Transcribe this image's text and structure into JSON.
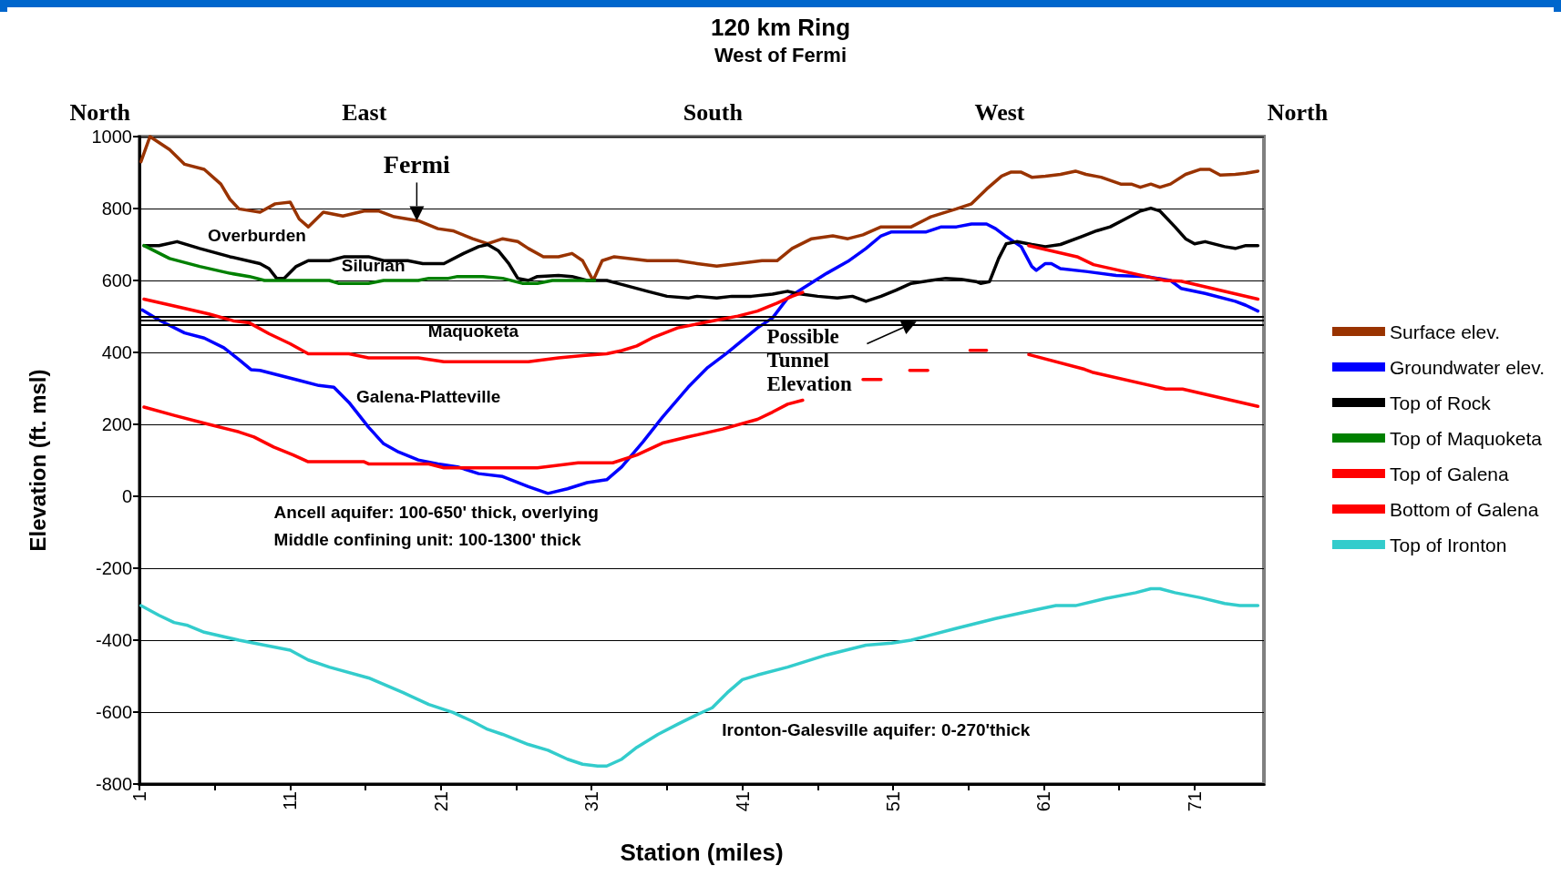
{
  "chart_data": {
    "type": "line",
    "title": "120 km Ring",
    "subtitle": "West of Fermi",
    "xlabel": "Station (miles)",
    "ylabel": "Elevation (ft. msl)",
    "xlim": [
      1,
      75.6
    ],
    "xticks": [
      1,
      {
        "value": 6,
        "label": null
      },
      11,
      {
        "value": 16,
        "label": null
      },
      21,
      {
        "value": 26,
        "label": null
      },
      31,
      {
        "value": 36,
        "label": null
      },
      41,
      {
        "value": 46,
        "label": null
      },
      51,
      {
        "value": 56,
        "label": null
      },
      61,
      {
        "value": 66,
        "label": null
      },
      71
    ],
    "ylim": [
      -800,
      1000
    ],
    "yticks": [
      -800,
      -600,
      -400,
      -200,
      0,
      200,
      400,
      600,
      800,
      1000
    ],
    "grid": "y",
    "legend": "right",
    "marker": "none",
    "line_style": "solid",
    "ref_lines": [
      {
        "axis": "y",
        "value": 500,
        "color": "#000000"
      },
      {
        "axis": "y",
        "value": 488,
        "color": "#000000"
      },
      {
        "axis": "y",
        "value": 476,
        "color": "#000000"
      }
    ],
    "annotations": [
      "North",
      "East",
      "South",
      "West",
      "North",
      {
        "text": "Fermi",
        "x": 19.4,
        "y": 766
      },
      "Overburden",
      "Silurian",
      "Maquoketa",
      "Galena-Platteville",
      "Possible Tunnel Elevation",
      "Ancell aquifer: 100-650' thick, overlying",
      "Middle confining unit: 100-1300' thick",
      "Ironton-Galesville aquifer: 0-270'thick"
    ],
    "series": [
      {
        "name": "Surface elev.",
        "color": "#993300",
        "x": [
          1.1,
          1.7,
          3,
          4,
          5.3,
          6.4,
          7,
          7.6,
          9,
          10,
          11,
          11.6,
          12.2,
          13.2,
          14.5,
          15.9,
          16.9,
          17.9,
          19.5,
          20.8,
          21.8,
          23.1,
          24.1,
          25.1,
          26.1,
          26.8,
          27.8,
          28.8,
          29.7,
          30.4,
          31.1,
          31.7,
          32.5,
          34.7,
          36.7,
          38,
          39.3,
          40.7,
          42.3,
          43.3,
          44.3,
          45.6,
          47,
          48,
          49,
          50.2,
          52.2,
          53.5,
          55.2,
          56.2,
          57.2,
          58.2,
          58.8,
          59.5,
          60.2,
          61.1,
          62.1,
          63.1,
          63.8,
          64.8,
          66.1,
          66.8,
          67.4,
          68.1,
          68.7,
          69.4,
          70.4,
          71.4,
          72,
          72.7,
          73.7,
          74.4,
          75.2
        ],
        "values": [
          930,
          1000,
          964,
          923,
          909,
          868,
          826,
          799,
          790,
          813,
          818,
          771,
          749,
          790,
          779,
          793,
          793,
          777,
          766,
          744,
          738,
          716,
          702,
          716,
          708,
          689,
          666,
          666,
          675,
          655,
          600,
          655,
          666,
          655,
          655,
          647,
          640,
          647,
          655,
          655,
          689,
          716,
          724,
          716,
          727,
          749,
          749,
          777,
          799,
          813,
          854,
          890,
          901,
          901,
          887,
          890,
          895,
          904,
          895,
          887,
          868,
          868,
          859,
          868,
          859,
          868,
          895,
          909,
          909,
          893,
          895,
          898,
          904
        ]
      },
      {
        "name": "Groundwater elev.",
        "color": "#0000ff",
        "x": [
          1.2,
          2.3,
          4,
          5.3,
          6.6,
          7.6,
          8.4,
          9,
          10.3,
          11.6,
          12.9,
          13.9,
          14.9,
          16.2,
          17.2,
          18.2,
          19.5,
          20.8,
          22.1,
          23.5,
          25.1,
          26.8,
          28.1,
          29.4,
          30.7,
          32,
          33,
          34.4,
          35.7,
          37.4,
          38.7,
          40,
          42,
          43,
          44,
          45,
          46.6,
          48,
          49.2,
          50.2,
          50.9,
          53.2,
          54.2,
          55.2,
          56.2,
          57.2,
          57.8,
          58.5,
          59.5,
          60.2,
          60.5,
          61.1,
          61.5,
          62.1,
          63.8,
          65.8,
          67.8,
          69.4,
          70.1,
          71.7,
          73.7,
          74.4,
          75.2
        ],
        "values": [
          518,
          490,
          454,
          440,
          413,
          380,
          352,
          350,
          336,
          322,
          308,
          303,
          261,
          192,
          146,
          123,
          101,
          90,
          82,
          63,
          55,
          27,
          8,
          21,
          38,
          46,
          82,
          151,
          220,
          303,
          358,
          399,
          468,
          496,
          551,
          578,
          620,
          653,
          689,
          724,
          735,
          735,
          749,
          749,
          757,
          757,
          744,
          722,
          694,
          639,
          628,
          647,
          647,
          633,
          625,
          614,
          611,
          600,
          578,
          564,
          542,
          531,
          515
        ]
      },
      {
        "name": "Top of Rock",
        "color": "#000000",
        "x": [
          1.3,
          2.3,
          3.5,
          5,
          7,
          9,
          9.6,
          10.1,
          10.6,
          11.4,
          12.2,
          13.6,
          14.6,
          16.2,
          17.2,
          18.8,
          19.8,
          21.2,
          22.5,
          23.5,
          24.1,
          24.8,
          25.5,
          26.1,
          26.8,
          27.4,
          28.8,
          29.7,
          30.7,
          32,
          33,
          34.7,
          36,
          37.4,
          38,
          39.3,
          40.3,
          41.6,
          43,
          44,
          44.6,
          46,
          47.3,
          48.3,
          49.2,
          50.2,
          51.2,
          52.2,
          53.5,
          54.5,
          55.5,
          56.5,
          56.8,
          57.4,
          58,
          58.5,
          59.2,
          60.2,
          61.1,
          62.1,
          63.5,
          64.5,
          65.4,
          66.4,
          67.4,
          68.1,
          68.7,
          69.7,
          70.4,
          71,
          71.7,
          73,
          73.7,
          74.4,
          75.2
        ],
        "values": [
          697,
          697,
          708,
          689,
          666,
          647,
          633,
          606,
          606,
          639,
          655,
          655,
          666,
          666,
          655,
          655,
          647,
          647,
          675,
          694,
          700,
          683,
          647,
          606,
          600,
          611,
          614,
          611,
          600,
          600,
          589,
          570,
          556,
          551,
          556,
          551,
          556,
          556,
          562,
          570,
          564,
          556,
          551,
          556,
          542,
          556,
          573,
          592,
          600,
          606,
          603,
          597,
          592,
          597,
          661,
          702,
          708,
          700,
          694,
          700,
          722,
          738,
          749,
          771,
          793,
          801,
          793,
          749,
          716,
          702,
          708,
          694,
          689,
          697,
          697
        ]
      },
      {
        "name": "Top of Maquoketa",
        "color": "#008000",
        "x": [
          1.3,
          3,
          5,
          7,
          8.3,
          9.3,
          13.6,
          14.2,
          16.2,
          17.2,
          19.5,
          20.2,
          21.5,
          22.1,
          23.8,
          25.1,
          26.4,
          27.4,
          28.4,
          31.2
        ],
        "values": [
          697,
          661,
          639,
          620,
          611,
          600,
          600,
          592,
          592,
          600,
          600,
          606,
          606,
          611,
          611,
          606,
          592,
          592,
          600,
          600
        ]
      },
      {
        "name": "Top of Galena",
        "color": "#ff0000",
        "x": [
          1.3,
          3.3,
          5.6,
          7.3,
          8.3,
          9.6,
          11,
          12.2,
          14.9,
          16.2,
          19.5,
          21.2,
          26.8,
          28.8,
          30.4,
          32,
          33,
          34,
          35,
          36.7,
          38,
          39.3,
          40.7,
          42,
          43.3,
          44.3,
          45,
          52,
          60,
          63.2,
          64.3,
          69,
          70.1,
          75.2
        ],
        "values": [
          548,
          529,
          507,
          487,
          482,
          452,
          424,
          396,
          396,
          385,
          385,
          374,
          374,
          385,
          391,
          396,
          405,
          418,
          440,
          468,
          479,
          490,
          501,
          515,
          537,
          556,
          567,
          null,
          697,
          666,
          644,
          600,
          598,
          548
        ]
      },
      {
        "name": "Bottom of Galena",
        "color": "#ff0000",
        "x": [
          1.3,
          3.3,
          5.3,
          7.6,
          8.6,
          9.9,
          11.2,
          12.2,
          15.9,
          16.2,
          20.2,
          21.2,
          27.4,
          30.1,
          32.4,
          34,
          35.7,
          37.4,
          39.7,
          42,
          43,
          44,
          45,
          47,
          49,
          50.2,
          51.2,
          52.1,
          53.3,
          54.7,
          56.1,
          57.2,
          58.6,
          60,
          63.7,
          64.2,
          69.1,
          70.2,
          75.2
        ],
        "values": [
          248,
          225,
          203,
          179,
          165,
          137,
          115,
          96,
          96,
          90,
          90,
          79,
          79,
          93,
          93,
          115,
          148,
          165,
          187,
          214,
          234,
          256,
          267,
          null,
          325,
          325,
          null,
          350,
          350,
          null,
          406,
          406,
          null,
          394,
          353,
          345,
          298,
          298,
          250
        ]
      },
      {
        "name": "Top of Ironton",
        "color": "#33cccc",
        "x": [
          1.1,
          2.3,
          3.3,
          4.2,
          5.3,
          7.6,
          9.3,
          11,
          12.2,
          13.6,
          16.2,
          18.5,
          20.2,
          21.8,
          23.1,
          24.1,
          25.1,
          26.8,
          28.1,
          29.4,
          30.4,
          31.4,
          32,
          33,
          34,
          35.4,
          36.7,
          38,
          39,
          40,
          41,
          42,
          44,
          46.6,
          49.2,
          50.9,
          52.2,
          55.2,
          57.8,
          60.5,
          61.8,
          63.1,
          65.1,
          67.1,
          68.1,
          68.7,
          69.7,
          71.4,
          73,
          74,
          75.2
        ],
        "values": [
          -304,
          -331,
          -351,
          -359,
          -378,
          -400,
          -414,
          -428,
          -455,
          -475,
          -505,
          -546,
          -579,
          -601,
          -626,
          -648,
          -662,
          -690,
          -706,
          -731,
          -745,
          -750,
          -750,
          -731,
          -698,
          -662,
          -634,
          -607,
          -588,
          -546,
          -510,
          -497,
          -475,
          -441,
          -414,
          -408,
          -400,
          -367,
          -340,
          -315,
          -304,
          -304,
          -284,
          -268,
          -257,
          -257,
          -268,
          -282,
          -298,
          -304,
          -304
        ]
      }
    ]
  }
}
